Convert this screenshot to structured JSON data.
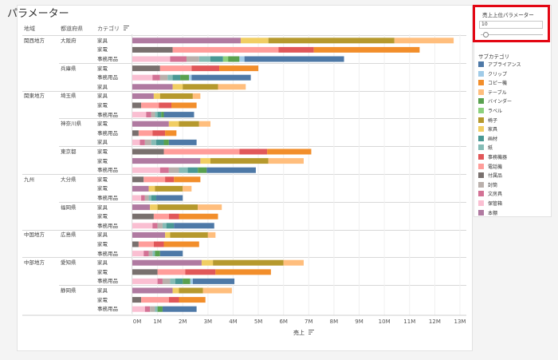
{
  "title": "パラメーター",
  "headers": {
    "region": "地域",
    "prefecture": "都道府県",
    "category": "カテゴリ"
  },
  "parameter": {
    "title": "売上上位パラメーター",
    "value": "10"
  },
  "legend": {
    "title": "サブカテゴリ",
    "items": [
      {
        "label": "アプライアンス",
        "color": "#4e79a7"
      },
      {
        "label": "クリップ",
        "color": "#a0cbe8"
      },
      {
        "label": "コピー機",
        "color": "#f28e2b"
      },
      {
        "label": "テーブル",
        "color": "#ffbe7d"
      },
      {
        "label": "バインダー",
        "color": "#59a14f"
      },
      {
        "label": "ラベル",
        "color": "#8cd17d"
      },
      {
        "label": "椅子",
        "color": "#b6992d"
      },
      {
        "label": "家具",
        "color": "#f1ce63"
      },
      {
        "label": "画材",
        "color": "#499894"
      },
      {
        "label": "紙",
        "color": "#86bcb6"
      },
      {
        "label": "事務機器",
        "color": "#e15759"
      },
      {
        "label": "電話機",
        "color": "#ff9d9a"
      },
      {
        "label": "付属品",
        "color": "#79706e"
      },
      {
        "label": "封筒",
        "color": "#bab0ac"
      },
      {
        "label": "文房具",
        "color": "#d37295"
      },
      {
        "label": "保管箱",
        "color": "#fabfd2"
      },
      {
        "label": "本棚",
        "color": "#b07aa1"
      }
    ]
  },
  "chart_data": {
    "type": "bar",
    "stacked": true,
    "orientation": "horizontal",
    "xlabel": "売上",
    "xlim": [
      0,
      13000000
    ],
    "x_ticks": [
      "0M",
      "1M",
      "2M",
      "3M",
      "4M",
      "5M",
      "6M",
      "7M",
      "8M",
      "9M",
      "10M",
      "11M",
      "12M",
      "13M"
    ],
    "rows": [
      {
        "region": "関西地方",
        "prefecture": "大阪府",
        "category": "家具",
        "segments": [
          [
            "本棚",
            4.3
          ],
          [
            "家具",
            1.1
          ],
          [
            "椅子",
            5.0
          ],
          [
            "テーブル",
            2.35
          ]
        ]
      },
      {
        "region": "",
        "prefecture": "",
        "category": "家電",
        "segments": [
          [
            "付属品",
            1.6
          ],
          [
            "電話機",
            4.2
          ],
          [
            "事務機器",
            1.4
          ],
          [
            "コピー機",
            4.2
          ]
        ]
      },
      {
        "region": "",
        "prefecture": "",
        "category": "事務用品",
        "segments": [
          [
            "保管箱",
            1.5
          ],
          [
            "文房具",
            0.65
          ],
          [
            "封筒",
            0.5
          ],
          [
            "紙",
            0.45
          ],
          [
            "画材",
            0.5
          ],
          [
            "ラベル",
            0.2
          ],
          [
            "バインダー",
            0.45
          ],
          [
            "クリップ",
            0.2
          ],
          [
            "アプライアンス",
            3.95
          ]
        ]
      },
      {
        "region": "",
        "prefecture": "兵庫県",
        "category": "家電",
        "segments": [
          [
            "付属品",
            1.1
          ],
          [
            "電話機",
            1.25
          ],
          [
            "事務機器",
            1.1
          ],
          [
            "コピー機",
            1.55
          ]
        ]
      },
      {
        "region": "",
        "prefecture": "",
        "category": "事務用品",
        "segments": [
          [
            "保管箱",
            0.8
          ],
          [
            "文房具",
            0.3
          ],
          [
            "封筒",
            0.3
          ],
          [
            "紙",
            0.2
          ],
          [
            "画材",
            0.3
          ],
          [
            "バインダー",
            0.35
          ],
          [
            "クリップ",
            0.1
          ],
          [
            "アプライアンス",
            2.35
          ]
        ]
      },
      {
        "region": "",
        "prefecture": "",
        "category": "家具",
        "segments": [
          [
            "本棚",
            1.6
          ],
          [
            "家具",
            0.4
          ],
          [
            "椅子",
            1.4
          ],
          [
            "テーブル",
            1.1
          ]
        ]
      },
      {
        "region": "関東地方",
        "prefecture": "埼玉県",
        "category": "家具",
        "segments": [
          [
            "本棚",
            0.85
          ],
          [
            "家具",
            0.25
          ],
          [
            "椅子",
            1.3
          ],
          [
            "テーブル",
            0.3
          ]
        ]
      },
      {
        "region": "",
        "prefecture": "",
        "category": "家電",
        "segments": [
          [
            "付属品",
            0.35
          ],
          [
            "電話機",
            0.7
          ],
          [
            "事務機器",
            0.5
          ],
          [
            "コピー機",
            1.0
          ]
        ]
      },
      {
        "region": "",
        "prefecture": "",
        "category": "事務用品",
        "segments": [
          [
            "保管箱",
            0.55
          ],
          [
            "文房具",
            0.2
          ],
          [
            "封筒",
            0.15
          ],
          [
            "紙",
            0.1
          ],
          [
            "画材",
            0.15
          ],
          [
            "バインダー",
            0.1
          ],
          [
            "アプライアンス",
            1.2
          ]
        ]
      },
      {
        "region": "",
        "prefecture": "神奈川県",
        "category": "家電",
        "segments": [
          [
            "本棚",
            1.45
          ],
          [
            "家具",
            0.4
          ],
          [
            "椅子",
            0.8
          ],
          [
            "テーブル",
            0.45
          ]
        ]
      },
      {
        "region": "",
        "prefecture": "",
        "category": "事務用品",
        "segments": [
          [
            "付属品",
            0.25
          ],
          [
            "電話機",
            0.55
          ],
          [
            "事務機器",
            0.5
          ],
          [
            "コピー機",
            0.45
          ]
        ]
      },
      {
        "region": "",
        "prefecture": "",
        "category": "家具",
        "segments": [
          [
            "保管箱",
            0.3
          ],
          [
            "文房具",
            0.2
          ],
          [
            "封筒",
            0.25
          ],
          [
            "紙",
            0.2
          ],
          [
            "画材",
            0.3
          ],
          [
            "バインダー",
            0.2
          ],
          [
            "アプライアンス",
            1.1
          ]
        ]
      },
      {
        "region": "",
        "prefecture": "東京都",
        "category": "家電",
        "segments": [
          [
            "付属品",
            1.25
          ],
          [
            "電話機",
            3.0
          ],
          [
            "事務機器",
            1.1
          ],
          [
            "コピー機",
            1.75
          ]
        ]
      },
      {
        "region": "",
        "prefecture": "",
        "category": "家電",
        "segments": [
          [
            "本棚",
            2.7
          ],
          [
            "家具",
            0.4
          ],
          [
            "椅子",
            2.3
          ],
          [
            "テーブル",
            1.4
          ]
        ]
      },
      {
        "region": "",
        "prefecture": "",
        "category": "事務用品",
        "segments": [
          [
            "保管箱",
            1.1
          ],
          [
            "文房具",
            0.35
          ],
          [
            "封筒",
            0.4
          ],
          [
            "紙",
            0.35
          ],
          [
            "画材",
            0.4
          ],
          [
            "バインダー",
            0.35
          ],
          [
            "アプライアンス",
            1.95
          ]
        ]
      },
      {
        "region": "九州",
        "prefecture": "大分県",
        "category": "家電",
        "segments": [
          [
            "付属品",
            0.45
          ],
          [
            "電話機",
            0.85
          ],
          [
            "事務機器",
            0.35
          ],
          [
            "コピー機",
            1.05
          ]
        ]
      },
      {
        "region": "",
        "prefecture": "",
        "category": "家電",
        "segments": [
          [
            "本棚",
            0.65
          ],
          [
            "家具",
            0.25
          ],
          [
            "椅子",
            1.1
          ],
          [
            "テーブル",
            0.35
          ]
        ]
      },
      {
        "region": "",
        "prefecture": "",
        "category": "事務用品",
        "segments": [
          [
            "保管箱",
            0.35
          ],
          [
            "文房具",
            0.15
          ],
          [
            "封筒",
            0.15
          ],
          [
            "紙",
            0.1
          ],
          [
            "画材",
            0.2
          ],
          [
            "アプライアンス",
            1.05
          ]
        ]
      },
      {
        "region": "",
        "prefecture": "福岡県",
        "category": "家具",
        "segments": [
          [
            "本棚",
            0.7
          ],
          [
            "家具",
            0.3
          ],
          [
            "椅子",
            1.6
          ],
          [
            "テーブル",
            0.95
          ]
        ]
      },
      {
        "region": "",
        "prefecture": "",
        "category": "家電",
        "segments": [
          [
            "付属品",
            0.85
          ],
          [
            "電話機",
            0.6
          ],
          [
            "事務機器",
            0.4
          ],
          [
            "コピー機",
            1.55
          ]
        ]
      },
      {
        "region": "",
        "prefecture": "",
        "category": "事務用品",
        "segments": [
          [
            "保管箱",
            0.8
          ],
          [
            "文房具",
            0.2
          ],
          [
            "封筒",
            0.2
          ],
          [
            "紙",
            0.15
          ],
          [
            "画材",
            0.3
          ],
          [
            "アプライアンス",
            1.6
          ]
        ]
      },
      {
        "region": "中国地方",
        "prefecture": "広島県",
        "category": "家具",
        "segments": [
          [
            "本棚",
            1.3
          ],
          [
            "家具",
            0.2
          ],
          [
            "椅子",
            1.5
          ],
          [
            "テーブル",
            0.3
          ]
        ]
      },
      {
        "region": "",
        "prefecture": "",
        "category": "家電",
        "segments": [
          [
            "付属品",
            0.25
          ],
          [
            "電話機",
            0.6
          ],
          [
            "事務機器",
            0.4
          ],
          [
            "コピー機",
            1.4
          ]
        ]
      },
      {
        "region": "",
        "prefecture": "",
        "category": "事務用品",
        "segments": [
          [
            "保管箱",
            0.45
          ],
          [
            "文房具",
            0.2
          ],
          [
            "封筒",
            0.15
          ],
          [
            "紙",
            0.1
          ],
          [
            "バインダー",
            0.2
          ],
          [
            "アプライアンス",
            0.9
          ]
        ]
      },
      {
        "region": "中部地方",
        "prefecture": "愛知県",
        "category": "家具",
        "segments": [
          [
            "本棚",
            2.75
          ],
          [
            "家具",
            0.45
          ],
          [
            "椅子",
            2.8
          ],
          [
            "テーブル",
            0.8
          ]
        ]
      },
      {
        "region": "",
        "prefecture": "",
        "category": "家電",
        "segments": [
          [
            "付属品",
            1.0
          ],
          [
            "電話機",
            1.1
          ],
          [
            "事務機器",
            1.2
          ],
          [
            "コピー機",
            2.2
          ]
        ]
      },
      {
        "region": "",
        "prefecture": "",
        "category": "事務用品",
        "segments": [
          [
            "保管箱",
            1.0
          ],
          [
            "文房具",
            0.2
          ],
          [
            "封筒",
            0.3
          ],
          [
            "紙",
            0.2
          ],
          [
            "画材",
            0.3
          ],
          [
            "バインダー",
            0.3
          ],
          [
            "クリップ",
            0.1
          ],
          [
            "アプライアンス",
            1.65
          ]
        ]
      },
      {
        "region": "",
        "prefecture": "静岡県",
        "category": "家具",
        "segments": [
          [
            "本棚",
            1.6
          ],
          [
            "家具",
            0.25
          ],
          [
            "椅子",
            0.95
          ],
          [
            "テーブル",
            1.15
          ]
        ]
      },
      {
        "region": "",
        "prefecture": "",
        "category": "家電",
        "segments": [
          [
            "付属品",
            0.35
          ],
          [
            "電話機",
            1.1
          ],
          [
            "事務機器",
            0.4
          ],
          [
            "コピー機",
            1.05
          ]
        ]
      },
      {
        "region": "",
        "prefecture": "",
        "category": "事務用品",
        "segments": [
          [
            "保管箱",
            0.5
          ],
          [
            "文房具",
            0.2
          ],
          [
            "封筒",
            0.2
          ],
          [
            "紙",
            0.1
          ],
          [
            "バインダー",
            0.2
          ],
          [
            "アプライアンス",
            1.35
          ]
        ]
      }
    ]
  }
}
